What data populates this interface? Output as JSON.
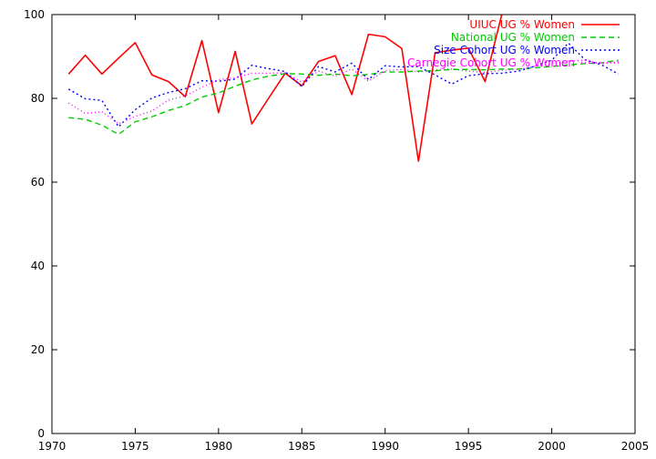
{
  "chart_data": {
    "type": "line",
    "title": "",
    "xlabel": "",
    "ylabel": "",
    "xlim": [
      1970,
      2005
    ],
    "ylim": [
      0,
      100
    ],
    "xticks": [
      1970,
      1975,
      1980,
      1985,
      1990,
      1995,
      2000,
      2005
    ],
    "yticks": [
      0,
      20,
      40,
      60,
      80,
      100
    ],
    "grid": false,
    "legend_position": "top-right",
    "series": [
      {
        "name": "UIUC UG % Women",
        "color": "#ff0000",
        "dash": "solid",
        "x": [
          1971,
          1972,
          1973,
          1974,
          1975,
          1976,
          1977,
          1978,
          1979,
          1980,
          1981,
          1982,
          1983,
          1984,
          1985,
          1986,
          1987,
          1988,
          1989,
          1990,
          1991,
          1992,
          1993,
          1994,
          1995,
          1996,
          1997
        ],
        "values": [
          85.8,
          90.3,
          85.8,
          89.6,
          93.3,
          85.6,
          84.0,
          80.4,
          93.8,
          76.6,
          91.2,
          73.9,
          80.0,
          86.0,
          83.0,
          88.8,
          90.2,
          80.9,
          95.3,
          94.7,
          91.9,
          65.0,
          90.9,
          91.5,
          92.0,
          84.0,
          100.0
        ]
      },
      {
        "name": "National UG % Women",
        "color": "#00cc00",
        "dash": "6,4",
        "x": [
          1971,
          1972,
          1973,
          1974,
          1975,
          1976,
          1977,
          1978,
          1979,
          1980,
          1981,
          1982,
          1983,
          1984,
          1985,
          1986,
          1987,
          1988,
          1989,
          1990,
          1991,
          1992,
          1993,
          1994,
          1995,
          1996,
          1997,
          1998,
          1999,
          2000,
          2001,
          2002,
          2003,
          2004
        ],
        "values": [
          75.4,
          75.0,
          73.6,
          71.4,
          74.4,
          75.6,
          77.1,
          78.3,
          80.3,
          81.3,
          82.9,
          84.4,
          85.3,
          85.9,
          85.8,
          85.5,
          85.8,
          85.4,
          85.7,
          86.3,
          86.3,
          86.5,
          86.6,
          86.9,
          86.9,
          86.8,
          87.0,
          87.0,
          87.3,
          87.6,
          88.0,
          88.3,
          88.5,
          89.1
        ]
      },
      {
        "name": "Size Cohort UG % Women",
        "color": "#0000ff",
        "dash": "2,3",
        "x": [
          1971,
          1972,
          1973,
          1974,
          1975,
          1976,
          1977,
          1978,
          1979,
          1980,
          1981,
          1982,
          1983,
          1984,
          1985,
          1986,
          1987,
          1988,
          1989,
          1990,
          1991,
          1992,
          1993,
          1994,
          1995,
          1996,
          1997,
          1998,
          1999,
          2000,
          2001,
          2002,
          2003,
          2004
        ],
        "values": [
          82.2,
          79.9,
          79.5,
          73.2,
          77.3,
          80.1,
          81.4,
          82.3,
          84.2,
          84.1,
          84.6,
          87.9,
          87.1,
          86.4,
          82.8,
          87.6,
          86.3,
          88.4,
          84.5,
          87.8,
          87.5,
          87.6,
          85.6,
          83.4,
          85.4,
          85.9,
          86.0,
          86.5,
          87.7,
          89.1,
          93.2,
          89.2,
          88.0,
          85.8
        ]
      },
      {
        "name": "Carnegie Cohort UG % Women",
        "color": "#ff00ff",
        "dash": "1,3",
        "x": [
          1971,
          1972,
          1973,
          1974,
          1975,
          1976,
          1977,
          1978,
          1979,
          1980,
          1981,
          1982,
          1983,
          1984,
          1985,
          1986,
          1987,
          1988,
          1989,
          1990,
          1991,
          1992,
          1993,
          1994,
          1995,
          1996,
          1997,
          1998,
          1999,
          2000,
          2001,
          2002,
          2003,
          2004
        ],
        "values": [
          78.9,
          76.4,
          76.8,
          73.9,
          75.7,
          77.0,
          79.6,
          80.6,
          82.6,
          84.5,
          84.9,
          86.0,
          86.0,
          86.1,
          83.9,
          86.5,
          85.3,
          87.0,
          84.1,
          86.6,
          86.9,
          86.3,
          86.8,
          87.0,
          86.5,
          86.2,
          86.7,
          86.9,
          87.7,
          88.3,
          88.9,
          89.1,
          88.3,
          88.8
        ]
      }
    ]
  }
}
